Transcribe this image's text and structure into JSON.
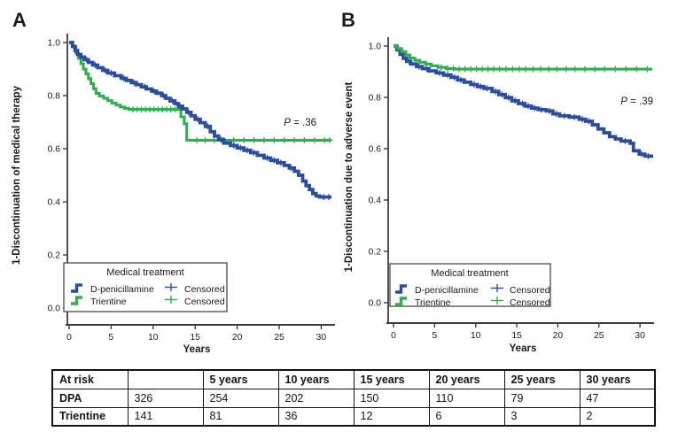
{
  "figure": {
    "panels": [
      {
        "label": "A",
        "p_label": "P",
        "p_text": " = .36",
        "xlabel": "Years",
        "ylabel": "1-Discontinuation of medical therapy",
        "legend": {
          "title": "Medical treatment",
          "entries": [
            {
              "label": "D-penicillamine",
              "symbol": "step-icon",
              "color": "#2b4da0"
            },
            {
              "label": "Trientine",
              "symbol": "step-icon",
              "color": "#2fb04c"
            },
            {
              "label": "Censored",
              "symbol": "plus-icon",
              "color": "#2b4da0"
            },
            {
              "label": "Censored",
              "symbol": "plus-icon",
              "color": "#2fb04c"
            }
          ]
        }
      },
      {
        "label": "B",
        "p_label": "P",
        "p_text": " = .39",
        "xlabel": "Years",
        "ylabel": "1-Discontinuation due to adverse event",
        "legend": {
          "title": "Medical treatment",
          "entries": [
            {
              "label": "D-penicillamine",
              "symbol": "step-icon",
              "color": "#2b4da0"
            },
            {
              "label": "Trientine",
              "symbol": "step-icon",
              "color": "#2fb04c"
            },
            {
              "label": "Censored",
              "symbol": "plus-icon",
              "color": "#2b4da0"
            },
            {
              "label": "Censored",
              "symbol": "plus-icon",
              "color": "#2fb04c"
            }
          ]
        }
      }
    ]
  },
  "chart_data": [
    {
      "type": "line",
      "subtype": "kaplan-meier-step",
      "panel": "A",
      "annotation": "P = .36",
      "xlabel": "Years",
      "ylabel": "1-Discontinuation of medical therapy",
      "xticks": [
        0,
        5,
        10,
        15,
        20,
        25,
        30
      ],
      "yticks": [
        0.0,
        0.2,
        0.4,
        0.6,
        0.8,
        1.0
      ],
      "xlim": [
        0,
        31.5
      ],
      "ylim": [
        0,
        1.0
      ],
      "grid": false,
      "legend_position": "bottom-left",
      "series": [
        {
          "name": "D-penicillamine",
          "color": "#2b4da0",
          "points": [
            [
              0,
              1.0
            ],
            [
              0.4,
              0.985
            ],
            [
              0.7,
              0.97
            ],
            [
              1.0,
              0.955
            ],
            [
              1.4,
              0.945
            ],
            [
              1.8,
              0.935
            ],
            [
              2.3,
              0.925
            ],
            [
              2.8,
              0.915
            ],
            [
              3.4,
              0.905
            ],
            [
              4.0,
              0.895
            ],
            [
              4.6,
              0.885
            ],
            [
              5.4,
              0.875
            ],
            [
              6.2,
              0.865
            ],
            [
              6.8,
              0.857
            ],
            [
              7.4,
              0.849
            ],
            [
              8.0,
              0.841
            ],
            [
              8.6,
              0.833
            ],
            [
              9.2,
              0.825
            ],
            [
              9.8,
              0.817
            ],
            [
              10.4,
              0.809
            ],
            [
              11.0,
              0.8
            ],
            [
              11.5,
              0.79
            ],
            [
              12.0,
              0.78
            ],
            [
              12.6,
              0.77
            ],
            [
              13.0,
              0.76
            ],
            [
              13.5,
              0.75
            ],
            [
              14.0,
              0.737
            ],
            [
              14.5,
              0.724
            ],
            [
              15.0,
              0.711
            ],
            [
              15.6,
              0.698
            ],
            [
              16.2,
              0.684
            ],
            [
              16.8,
              0.664
            ],
            [
              17.3,
              0.648
            ],
            [
              17.8,
              0.634
            ],
            [
              18.4,
              0.621
            ],
            [
              19.2,
              0.612
            ],
            [
              20.0,
              0.603
            ],
            [
              20.8,
              0.594
            ],
            [
              21.6,
              0.585
            ],
            [
              22.4,
              0.575
            ],
            [
              23.2,
              0.565
            ],
            [
              24.0,
              0.556
            ],
            [
              24.8,
              0.547
            ],
            [
              25.6,
              0.537
            ],
            [
              26.2,
              0.527
            ],
            [
              26.8,
              0.515
            ],
            [
              27.3,
              0.5
            ],
            [
              27.8,
              0.478
            ],
            [
              28.2,
              0.461
            ],
            [
              28.6,
              0.446
            ],
            [
              29.0,
              0.431
            ],
            [
              29.4,
              0.422
            ],
            [
              29.8,
              0.418
            ],
            [
              31.2,
              0.418
            ]
          ],
          "censor_times": [
            2.1,
            3.1,
            4.3,
            5.0,
            6.5,
            7.7,
            9.0,
            10.1,
            11.2,
            12.3,
            13.2,
            14.2,
            15.3,
            16.5,
            18.1,
            19.6,
            20.4,
            21.2,
            22.0,
            23.6,
            24.4,
            25.2,
            26.4,
            30.3,
            30.9
          ]
        },
        {
          "name": "Trientine",
          "color": "#2fb04c",
          "points": [
            [
              0,
              1.0
            ],
            [
              0.4,
              0.985
            ],
            [
              0.8,
              0.96
            ],
            [
              1.1,
              0.94
            ],
            [
              1.4,
              0.92
            ],
            [
              1.7,
              0.9
            ],
            [
              2.0,
              0.882
            ],
            [
              2.3,
              0.864
            ],
            [
              2.6,
              0.845
            ],
            [
              2.9,
              0.826
            ],
            [
              3.2,
              0.808
            ],
            [
              3.6,
              0.798
            ],
            [
              4.1,
              0.79
            ],
            [
              4.6,
              0.781
            ],
            [
              5.1,
              0.772
            ],
            [
              5.6,
              0.764
            ],
            [
              6.1,
              0.757
            ],
            [
              6.6,
              0.752
            ],
            [
              7.1,
              0.748
            ],
            [
              13.0,
              0.748
            ],
            [
              13.3,
              0.72
            ],
            [
              13.7,
              0.694
            ],
            [
              14.0,
              0.632
            ],
            [
              31.2,
              0.632
            ]
          ],
          "censor_times": [
            7.6,
            8.1,
            8.6,
            9.1,
            9.6,
            10.1,
            10.6,
            11.1,
            11.6,
            12.1,
            12.6,
            15.2,
            16.2,
            17.3,
            18.4,
            19.6,
            20.8,
            22.0,
            23.2,
            24.4,
            25.6,
            26.8,
            28.0,
            29.2,
            30.4,
            31.0
          ]
        }
      ]
    },
    {
      "type": "line",
      "subtype": "kaplan-meier-step",
      "panel": "B",
      "annotation": "P = .39",
      "xlabel": "Years",
      "ylabel": "1-Discontinuation due to adverse event",
      "xticks": [
        0,
        5,
        10,
        15,
        20,
        25,
        30
      ],
      "yticks": [
        0.0,
        0.2,
        0.4,
        0.6,
        0.8,
        1.0
      ],
      "xlim": [
        0,
        31.5
      ],
      "ylim": [
        0,
        1.0
      ],
      "grid": false,
      "legend_position": "bottom-left",
      "series": [
        {
          "name": "D-penicillamine",
          "color": "#2b4da0",
          "points": [
            [
              0,
              1.0
            ],
            [
              0.4,
              0.985
            ],
            [
              0.8,
              0.968
            ],
            [
              1.2,
              0.952
            ],
            [
              1.6,
              0.94
            ],
            [
              2.1,
              0.93
            ],
            [
              2.8,
              0.92
            ],
            [
              3.5,
              0.912
            ],
            [
              4.3,
              0.903
            ],
            [
              5.2,
              0.895
            ],
            [
              6.1,
              0.887
            ],
            [
              7.0,
              0.878
            ],
            [
              7.8,
              0.868
            ],
            [
              8.6,
              0.859
            ],
            [
              9.4,
              0.85
            ],
            [
              10.2,
              0.842
            ],
            [
              11.0,
              0.835
            ],
            [
              12.0,
              0.823
            ],
            [
              12.8,
              0.811
            ],
            [
              13.6,
              0.799
            ],
            [
              14.4,
              0.787
            ],
            [
              15.2,
              0.776
            ],
            [
              16.0,
              0.766
            ],
            [
              16.8,
              0.758
            ],
            [
              17.6,
              0.752
            ],
            [
              18.6,
              0.747
            ],
            [
              19.4,
              0.736
            ],
            [
              20.2,
              0.728
            ],
            [
              21.4,
              0.723
            ],
            [
              22.6,
              0.715
            ],
            [
              23.4,
              0.707
            ],
            [
              24.2,
              0.693
            ],
            [
              24.9,
              0.677
            ],
            [
              25.6,
              0.662
            ],
            [
              26.3,
              0.647
            ],
            [
              27.0,
              0.638
            ],
            [
              27.7,
              0.63
            ],
            [
              28.8,
              0.621
            ],
            [
              29.2,
              0.592
            ],
            [
              29.9,
              0.579
            ],
            [
              30.6,
              0.571
            ],
            [
              31.4,
              0.564
            ]
          ],
          "censor_times": [
            1.9,
            3.1,
            4.0,
            5.6,
            6.6,
            7.4,
            8.2,
            9.8,
            10.6,
            11.4,
            12.4,
            13.2,
            14.0,
            14.8,
            15.7,
            16.4,
            17.2,
            18.0,
            19.0,
            19.8,
            20.8,
            22.0,
            23.0,
            23.8,
            28.2,
            30.2,
            31.0
          ]
        },
        {
          "name": "Trientine",
          "color": "#2fb04c",
          "points": [
            [
              0,
              1.0
            ],
            [
              0.5,
              0.99
            ],
            [
              1.0,
              0.978
            ],
            [
              1.5,
              0.965
            ],
            [
              2.0,
              0.953
            ],
            [
              2.6,
              0.944
            ],
            [
              3.2,
              0.937
            ],
            [
              3.9,
              0.93
            ],
            [
              4.6,
              0.923
            ],
            [
              5.4,
              0.917
            ],
            [
              6.4,
              0.912
            ],
            [
              7.4,
              0.91
            ],
            [
              31.5,
              0.91
            ]
          ],
          "censor_times": [
            5.8,
            6.6,
            7.3,
            8.0,
            8.7,
            9.4,
            10.1,
            10.8,
            11.5,
            12.2,
            12.9,
            13.7,
            14.5,
            15.3,
            16.1,
            17.0,
            17.9,
            18.9,
            19.9,
            21.0,
            22.1,
            23.3,
            24.5,
            25.7,
            27.0,
            28.3,
            29.6,
            30.9
          ]
        }
      ]
    }
  ],
  "risk_table": {
    "header": [
      "At risk",
      "",
      "5 years",
      "10 years",
      "15 years",
      "20 years",
      "25 years",
      "30 years"
    ],
    "rows": [
      {
        "label": "DPA",
        "values": [
          "326",
          "254",
          "202",
          "150",
          "110",
          "79",
          "47"
        ]
      },
      {
        "label": "Trientine",
        "values": [
          "141",
          "81",
          "36",
          "12",
          "6",
          "3",
          "2"
        ]
      }
    ]
  },
  "colors": {
    "d_penicillamine": "#2b4da0",
    "trientine": "#2fb04c",
    "axis": "#3c3c3c",
    "text": "#1a1a1a"
  }
}
